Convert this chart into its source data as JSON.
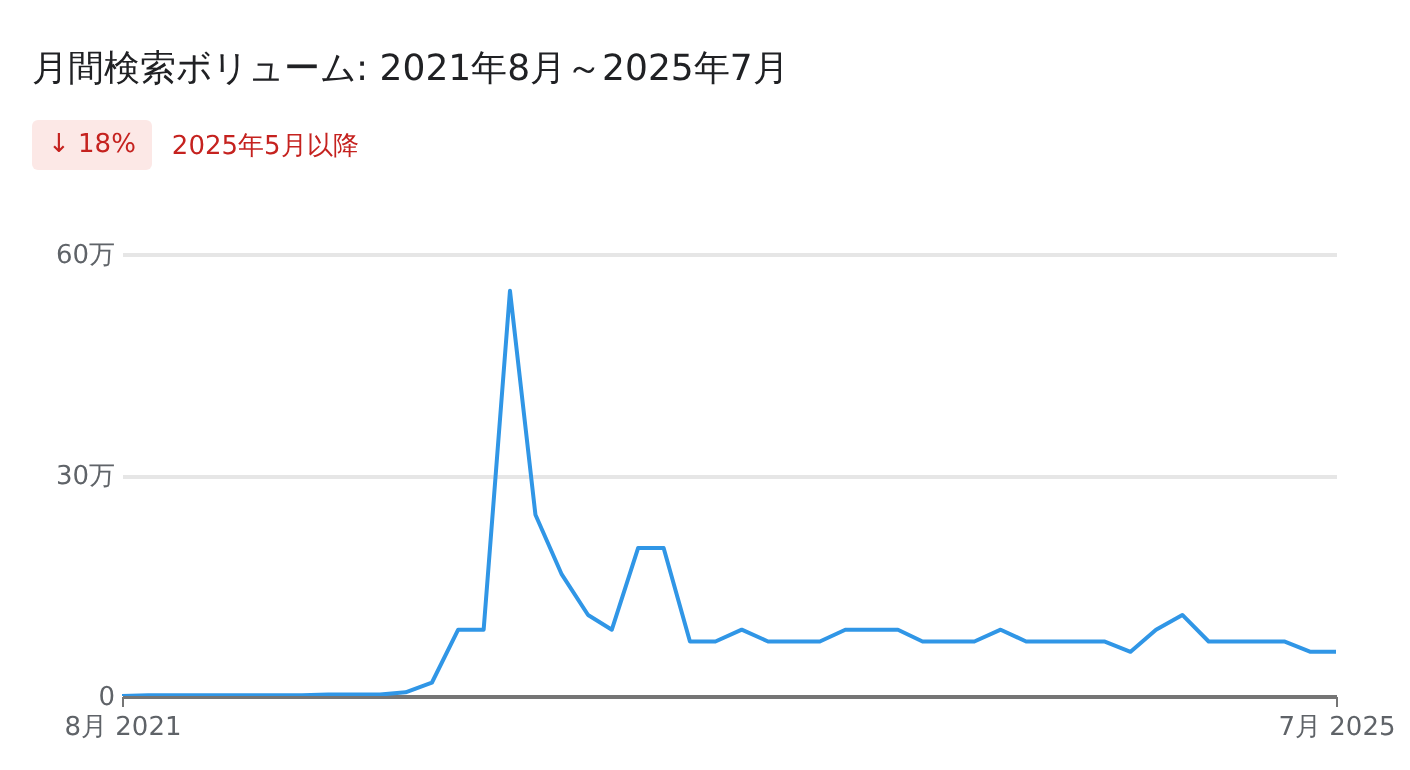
{
  "chart_data": {
    "type": "line",
    "title": "月間検索ボリューム: 2021年8月～2025年7月",
    "annotations": [
      "↓ 18%",
      "2025年5月以降"
    ],
    "x": [
      "2021-08",
      "2021-09",
      "2021-10",
      "2021-11",
      "2021-12",
      "2022-01",
      "2022-02",
      "2022-03",
      "2022-04",
      "2022-05",
      "2022-06",
      "2022-07",
      "2022-08",
      "2022-09",
      "2022-10",
      "2022-11",
      "2022-12",
      "2023-01",
      "2023-02",
      "2023-03",
      "2023-04",
      "2023-05",
      "2023-06",
      "2023-07",
      "2023-08",
      "2023-09",
      "2023-10",
      "2023-11",
      "2023-12",
      "2024-01",
      "2024-02",
      "2024-03",
      "2024-04",
      "2024-05",
      "2024-06",
      "2024-07",
      "2024-08",
      "2024-09",
      "2024-10",
      "2024-11",
      "2024-12",
      "2025-01",
      "2025-02",
      "2025-03",
      "2025-04",
      "2025-05",
      "2025-06",
      "2025-07"
    ],
    "series": [
      {
        "color": "#3096e6",
        "values": [
          0,
          0.1,
          0.1,
          0.1,
          0.1,
          0.1,
          0.1,
          0.1,
          0.2,
          0.2,
          0.2,
          0.5,
          1.8,
          9,
          9,
          55,
          24.6,
          16.5,
          11,
          9,
          20.1,
          20.1,
          7.4,
          7.4,
          9,
          7.4,
          7.4,
          7.4,
          9,
          9,
          9,
          7.4,
          7.4,
          7.4,
          9,
          7.4,
          7.4,
          7.4,
          7.4,
          6,
          9,
          11,
          7.4,
          7.4,
          7.4,
          7.4,
          6,
          6
        ]
      }
    ],
    "xlim": [
      "2021-08",
      "2025-07"
    ],
    "xticks": [
      {
        "value": "2021-08",
        "label": "8月 2021"
      },
      {
        "value": "2025-07",
        "label": "7月 2025"
      }
    ],
    "ylim": [
      0,
      60
    ],
    "yticks": [
      0,
      {
        "value": 30,
        "label": "30万"
      },
      {
        "value": 60,
        "label": "60万"
      }
    ],
    "grid": "y",
    "marker": "none",
    "line_style": "solid"
  }
}
